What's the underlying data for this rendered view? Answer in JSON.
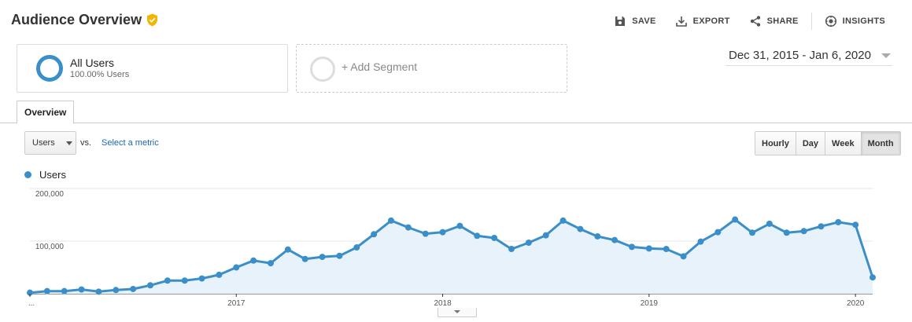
{
  "header": {
    "title": "Audience Overview",
    "actions": [
      {
        "label": "SAVE",
        "icon": "save-icon"
      },
      {
        "label": "EXPORT",
        "icon": "export-icon"
      },
      {
        "label": "SHARE",
        "icon": "share-icon"
      },
      {
        "label": "INSIGHTS",
        "icon": "insights-icon"
      }
    ]
  },
  "segments": {
    "active": {
      "name": "All Users",
      "sub": "100.00% Users"
    },
    "add_label": "+ Add Segment"
  },
  "date_range": "Dec 31, 2015 - Jan 6, 2020",
  "tabs": [
    {
      "label": "Overview",
      "active": true
    }
  ],
  "controls": {
    "metric": "Users",
    "vs": "vs.",
    "select_metric": "Select a metric",
    "granularity": [
      "Hourly",
      "Day",
      "Week",
      "Month"
    ],
    "granularity_active": "Month"
  },
  "colors": {
    "series": "#3b8fc8",
    "fill": "#e8f2fa"
  },
  "chart_data": {
    "type": "area",
    "legend": [
      "Users"
    ],
    "series": [
      {
        "name": "Users",
        "values": [
          2000,
          5000,
          5000,
          8000,
          4000,
          7000,
          9000,
          16000,
          25000,
          25000,
          29000,
          36000,
          50000,
          63000,
          58000,
          84000,
          66000,
          70000,
          72000,
          88000,
          113000,
          139000,
          126000,
          114000,
          117000,
          129000,
          110000,
          106000,
          85000,
          97000,
          111000,
          139000,
          123000,
          109000,
          102000,
          89000,
          86000,
          85000,
          71000,
          99000,
          117000,
          141000,
          116000,
          133000,
          116000,
          119000,
          128000,
          136000,
          131000,
          31000
        ]
      }
    ],
    "x_tick_labels": [
      "...",
      "2017",
      "2018",
      "2019",
      "2020"
    ],
    "y_tick_labels": [
      "100,000",
      "200,000"
    ],
    "ylim": [
      0,
      200000
    ],
    "grid": true
  }
}
